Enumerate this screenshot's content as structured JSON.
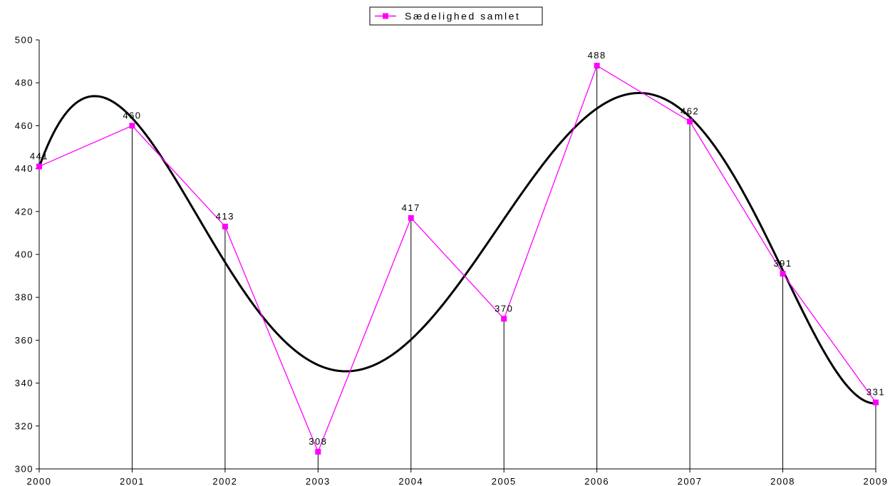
{
  "chart_data": {
    "type": "line",
    "title": "",
    "xlabel": "",
    "ylabel": "",
    "categories": [
      "2000",
      "2001",
      "2002",
      "2003",
      "2004",
      "2005",
      "2006",
      "2007",
      "2008",
      "2009"
    ],
    "series": [
      {
        "name": "Sædelighed samlet",
        "values": [
          441,
          460,
          413,
          308,
          417,
          370,
          488,
          462,
          391,
          331
        ],
        "color": "#ff00ff",
        "marker": "square",
        "data_labels": [
          "441",
          "460",
          "413",
          "308",
          "417",
          "370",
          "488",
          "462",
          "391",
          "331"
        ]
      }
    ],
    "trendline": {
      "type": "polynomial",
      "color": "#000000",
      "legend_entry": false
    },
    "drop_lines": true,
    "ylim": [
      300,
      500
    ],
    "y_ticks": [
      "300",
      "320",
      "340",
      "360",
      "380",
      "400",
      "420",
      "440",
      "460",
      "480",
      "500"
    ],
    "grid": false,
    "legend_position": "top-center"
  }
}
